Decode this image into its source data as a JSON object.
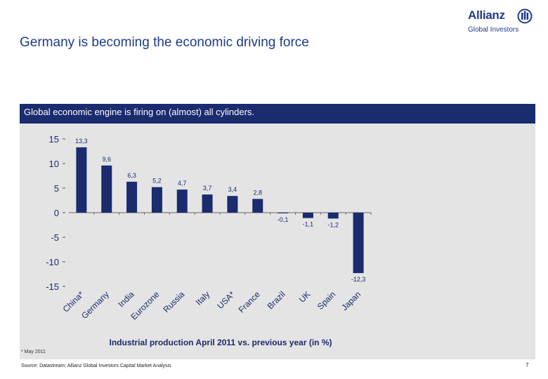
{
  "slide": {
    "title": "Germany is becoming the economic driving force",
    "banner": "Global economic engine is firing on (almost) all cylinders.",
    "footnote": "* May 2011",
    "source": "Source: Datastream; Allianz Global Investors Capital Market Analysis",
    "page_number": "7"
  },
  "logo": {
    "word": "Allianz",
    "sub": "Global Investors",
    "color": "#1f3a8a"
  },
  "colors": {
    "bar": "#1a2b6e",
    "banner": "#1a2b6e",
    "panel": "#e4e4e4"
  },
  "chart_data": {
    "type": "bar",
    "title": "",
    "xlabel": "Industrial production April 2011 vs. previous year (in %)",
    "ylabel": "",
    "ylim": [
      -15,
      15
    ],
    "yticks": [
      "15",
      "10",
      "5",
      "0",
      "-5",
      "-10",
      "-15"
    ],
    "ytick_values": [
      15,
      10,
      5,
      0,
      -5,
      -10,
      -15
    ],
    "categories": [
      "China*",
      "Germany",
      "India",
      "Eurozone",
      "Russia",
      "Italy",
      "USA*",
      "France",
      "Brazil",
      "UK",
      "Spain",
      "Japan"
    ],
    "values": [
      13.3,
      9.6,
      6.3,
      5.2,
      4.7,
      3.7,
      3.4,
      2.8,
      -0.1,
      -1.1,
      -1.2,
      -12.3
    ],
    "value_labels": [
      "13,3",
      "9,6",
      "6,3",
      "5,2",
      "4,7",
      "3,7",
      "3,4",
      "2,8",
      "-0,1",
      "-1,1",
      "-1,2",
      "-12,3"
    ],
    "grid": false,
    "legend": "none"
  }
}
